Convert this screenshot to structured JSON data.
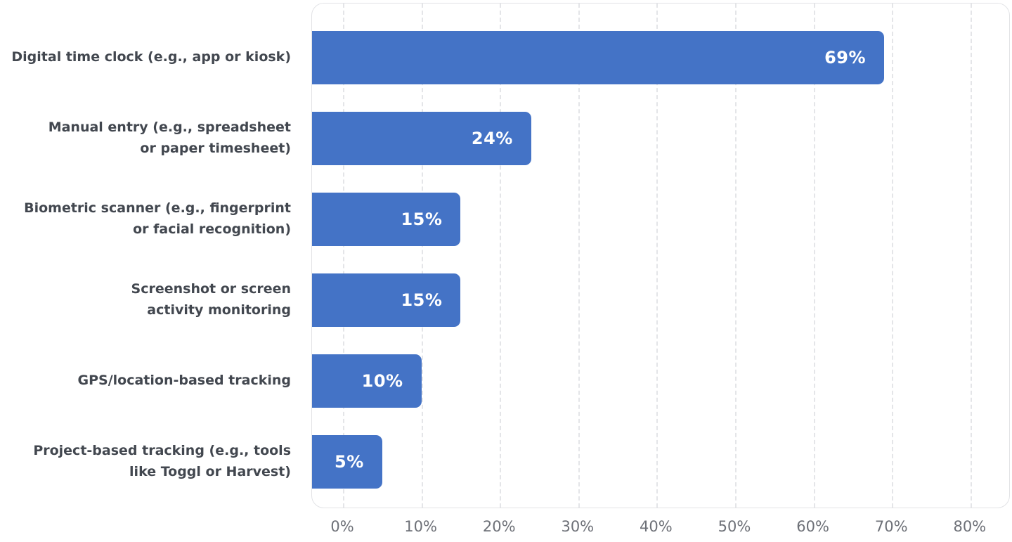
{
  "chart_data": {
    "type": "bar",
    "orientation": "horizontal",
    "title": "",
    "xlabel": "",
    "ylabel": "",
    "xlim": [
      0,
      80
    ],
    "grid": "vertical-dashed",
    "legend": "none",
    "bar_color": "#4473C6",
    "category_text_color": "#42474F",
    "tick_text_color": "#6D7077",
    "value_label_color": "#FFFFFF",
    "categories": [
      "Digital time clock (e.g., app or kiosk)",
      "Manual entry (e.g., spreadsheet or paper timesheet)",
      "Biometric scanner (e.g., fingerprint or facial recognition)",
      "Screenshot or screen activity monitoring",
      "GPS/location-based tracking",
      "Project-based tracking (e.g., tools like Toggl or Harvest)"
    ],
    "category_lines": [
      [
        "Digital time clock (e.g., app or kiosk)"
      ],
      [
        "Manual entry (e.g., spreadsheet",
        "or paper timesheet)"
      ],
      [
        "Biometric scanner (e.g., fingerprint",
        "or facial recognition)"
      ],
      [
        "Screenshot or screen",
        "activity monitoring"
      ],
      [
        "GPS/location-based tracking"
      ],
      [
        "Project-based tracking (e.g., tools",
        "like Toggl or Harvest)"
      ]
    ],
    "values": [
      69,
      24,
      15,
      15,
      10,
      5
    ],
    "value_labels": [
      "69%",
      "24%",
      "15%",
      "15%",
      "10%",
      "5%"
    ],
    "x_tick_values": [
      0,
      10,
      20,
      30,
      40,
      50,
      60,
      70,
      80
    ],
    "x_tick_labels": [
      "0%",
      "10%",
      "20%",
      "30%",
      "40%",
      "50%",
      "60%",
      "70%",
      "80%"
    ]
  }
}
